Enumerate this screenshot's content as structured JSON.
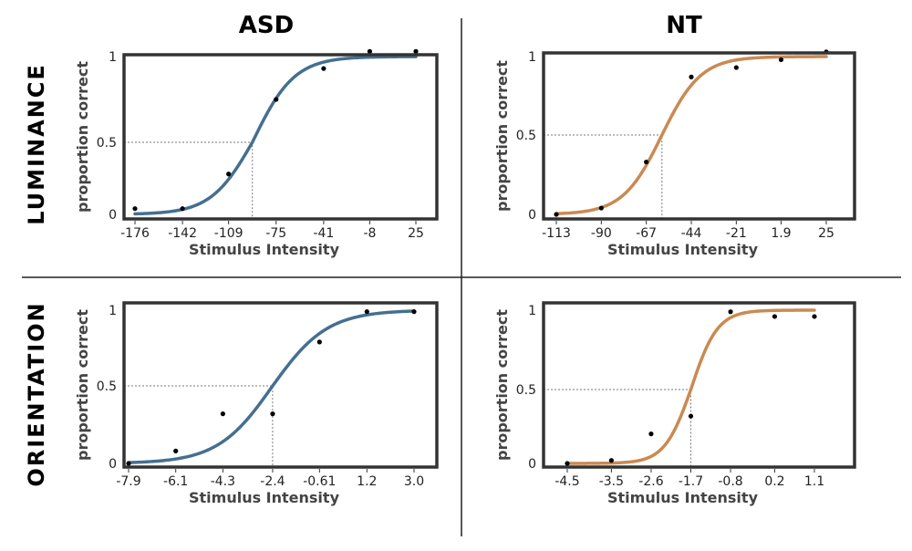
{
  "columns": [
    "ASD",
    "NT"
  ],
  "rows": [
    "LUMINANCE",
    "ORIENTATION"
  ],
  "colors": {
    "asd": "#456f91",
    "nt": "#c98a52"
  },
  "chart_data": [
    {
      "type": "line",
      "group": "ASD",
      "condition": "LUMINANCE",
      "xlabel": "Stimulus Intensity",
      "ylabel": "proportion correct",
      "x_tick_labels": [
        "-176",
        "-142",
        "-109",
        "-75",
        "-41",
        "-8",
        "25"
      ],
      "y_tick_labels": [
        "0",
        "0.5",
        "1"
      ],
      "ylim": [
        0,
        1
      ],
      "threshold": {
        "x": -92,
        "y": 0.5
      },
      "fit": {
        "mu": -92,
        "s": 15
      },
      "points": [
        {
          "x": -176,
          "y": 0.04
        },
        {
          "x": -142,
          "y": 0.04
        },
        {
          "x": -109,
          "y": 0.28
        },
        {
          "x": -75,
          "y": 0.75
        },
        {
          "x": -41,
          "y": 0.93
        },
        {
          "x": -8,
          "y": 1.03
        },
        {
          "x": 25,
          "y": 1.03
        }
      ]
    },
    {
      "type": "line",
      "group": "NT",
      "condition": "LUMINANCE",
      "xlabel": "Stimulus Intensity",
      "ylabel": "proportion correct",
      "x_tick_labels": [
        "-113",
        "-90",
        "-67",
        "-44",
        "-21",
        "1.9",
        "25"
      ],
      "y_tick_labels": [
        "0",
        "0.5",
        "1"
      ],
      "ylim": [
        0,
        1
      ],
      "threshold": {
        "x": -59,
        "y": 0.5
      },
      "fit": {
        "mu": -59,
        "s": 10
      },
      "points": [
        {
          "x": -113,
          "y": 0.0
        },
        {
          "x": -90,
          "y": 0.04
        },
        {
          "x": -67,
          "y": 0.33
        },
        {
          "x": -44,
          "y": 0.87
        },
        {
          "x": -21,
          "y": 0.93
        },
        {
          "x": 1.9,
          "y": 0.98
        },
        {
          "x": 25,
          "y": 1.03
        }
      ]
    },
    {
      "type": "line",
      "group": "ASD",
      "condition": "ORIENTATION",
      "xlabel": "Stimulus Intensity",
      "ylabel": "proportion correct",
      "x_tick_labels": [
        "-7.9",
        "-6.1",
        "-4.3",
        "-2.4",
        "-0.61",
        "1.2",
        "3.0"
      ],
      "y_tick_labels": [
        "0",
        "0.5",
        "1"
      ],
      "ylim": [
        0,
        1
      ],
      "threshold": {
        "x": -2.4,
        "y": 0.5
      },
      "fit": {
        "mu": -2.4,
        "s": 1.05
      },
      "points": [
        {
          "x": -7.9,
          "y": 0.0
        },
        {
          "x": -6.1,
          "y": 0.08
        },
        {
          "x": -4.3,
          "y": 0.32
        },
        {
          "x": -2.4,
          "y": 0.32
        },
        {
          "x": -0.61,
          "y": 0.79
        },
        {
          "x": 1.2,
          "y": 0.99
        },
        {
          "x": 3.0,
          "y": 0.99
        }
      ]
    },
    {
      "type": "line",
      "group": "NT",
      "condition": "ORIENTATION",
      "xlabel": "Stimulus Intensity",
      "ylabel": "proportion correct",
      "x_tick_labels": [
        "-4.5",
        "-3.5",
        "-2.6",
        "-1.7",
        "-0.8",
        "0.2",
        "1.1"
      ],
      "y_tick_labels": [
        "0",
        "0.5",
        "1"
      ],
      "ylim": [
        0,
        1
      ],
      "threshold": {
        "x": -1.7,
        "y": 0.5
      },
      "fit": {
        "mu": -1.7,
        "s": 0.3
      },
      "points": [
        {
          "x": -4.5,
          "y": 0.0
        },
        {
          "x": -3.5,
          "y": 0.02
        },
        {
          "x": -2.6,
          "y": 0.2
        },
        {
          "x": -1.7,
          "y": 0.32
        },
        {
          "x": -0.8,
          "y": 0.99
        },
        {
          "x": 0.2,
          "y": 0.96
        },
        {
          "x": 1.1,
          "y": 0.96
        }
      ]
    }
  ]
}
